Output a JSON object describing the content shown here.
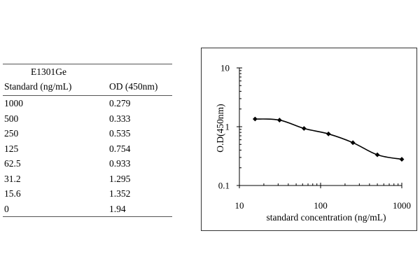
{
  "table": {
    "caption": "E1301Ge",
    "headers": [
      "Standard (ng/mL)",
      "OD (450nm)"
    ],
    "rows": [
      [
        "1000",
        "0.279"
      ],
      [
        "500",
        "0.333"
      ],
      [
        "250",
        "0.535"
      ],
      [
        "125",
        "0.754"
      ],
      [
        "62.5",
        "0.933"
      ],
      [
        "31.2",
        "1.295"
      ],
      [
        "15.6",
        "1.352"
      ],
      [
        "0",
        "1.94"
      ]
    ]
  },
  "chart_data": {
    "type": "line",
    "xlabel": "standard concentration (ng/mL)",
    "ylabel": "O.D(450nm)",
    "x_scale": "log",
    "y_scale": "log",
    "xlim": [
      10,
      1000
    ],
    "ylim": [
      0.1,
      10
    ],
    "x_ticks": [
      "10",
      "100",
      "1000"
    ],
    "y_ticks": [
      "10",
      "1",
      "0.1"
    ],
    "grid": false,
    "marker": "diamond",
    "line_color": "#000000",
    "series": [
      {
        "x": [
          15.6,
          31.2,
          62.5,
          125,
          250,
          500,
          1000
        ],
        "y": [
          1.352,
          1.295,
          0.933,
          0.754,
          0.535,
          0.333,
          0.279
        ]
      }
    ]
  }
}
